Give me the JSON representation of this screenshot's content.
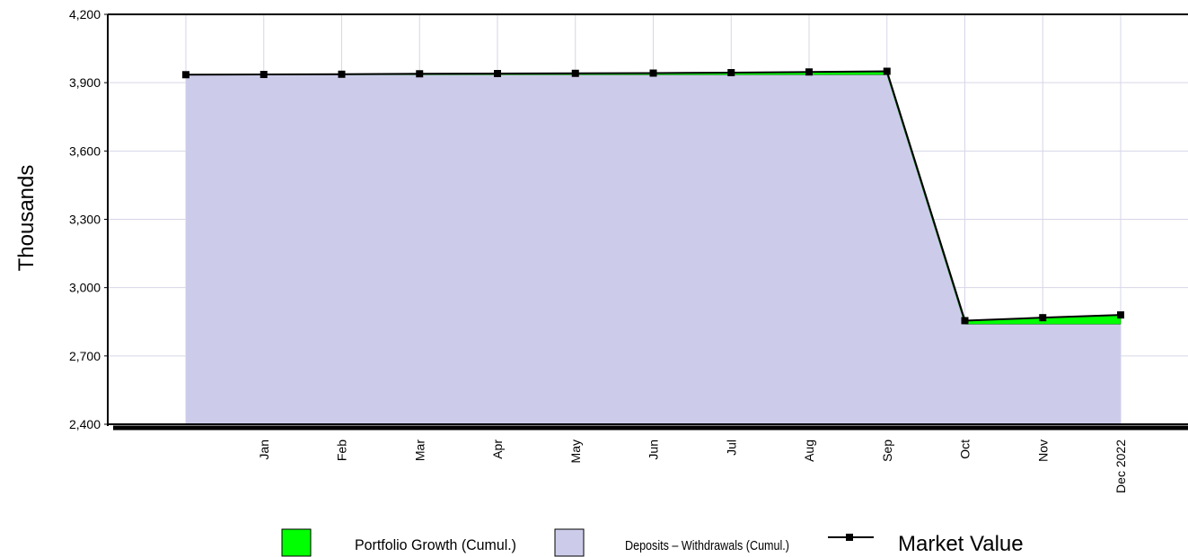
{
  "chart_data": {
    "type": "area",
    "title": "",
    "ylabel": "Thousands",
    "xlabel": "",
    "ylim": [
      2400,
      4200
    ],
    "yticks": [
      2400,
      2700,
      3000,
      3300,
      3600,
      3900,
      4200
    ],
    "ytick_labels": [
      "2,400",
      "2,700",
      "3,000",
      "3,300",
      "3,600",
      "3,900",
      "4,200"
    ],
    "categories": [
      "",
      "Jan",
      "Feb",
      "Mar",
      "Apr",
      "May",
      "Jun",
      "Jul",
      "Aug",
      "Sep",
      "Oct",
      "Nov",
      "Dec 2022"
    ],
    "grid": true,
    "legend_position": "bottom",
    "series": [
      {
        "name": "Deposits – Withdrawals (Cumul.)",
        "kind": "area",
        "color": "#ccccea",
        "values": [
          3935,
          3935,
          3935,
          3935,
          3935,
          3935,
          3935,
          3935,
          3935,
          3935,
          2840,
          2840,
          2840
        ]
      },
      {
        "name": "Portfolio Growth (Cumul.)",
        "kind": "stacked-area",
        "color": "#00ff00",
        "values": [
          0,
          1,
          2,
          4,
          5,
          6,
          7,
          9,
          12,
          15,
          15,
          28,
          40
        ]
      },
      {
        "name": "Market Value",
        "kind": "line",
        "color": "#000000",
        "values": [
          3935,
          3936,
          3937,
          3939,
          3940,
          3941,
          3942,
          3944,
          3947,
          3950,
          2855,
          2868,
          2880
        ]
      }
    ]
  }
}
